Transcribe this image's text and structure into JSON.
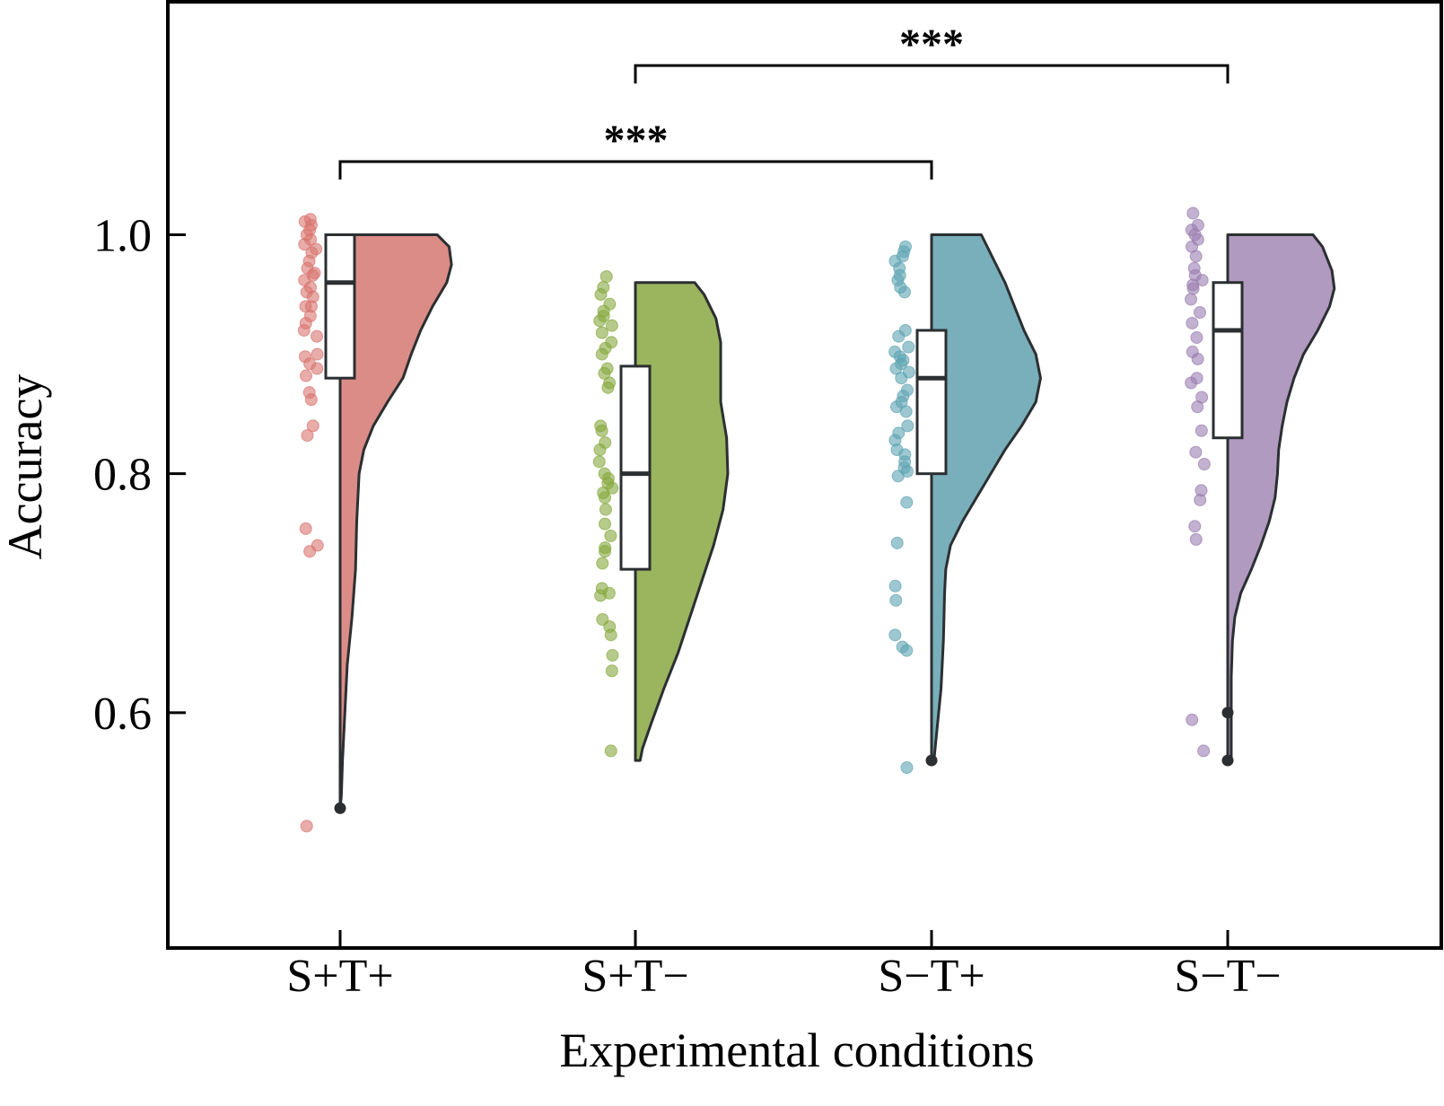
{
  "chart_data": {
    "type": "raincloud",
    "title": "",
    "xlabel": "Experimental conditions",
    "ylabel": "Accuracy",
    "ylim": [
      0.403,
      1.195
    ],
    "yticks": [
      0.6,
      0.8,
      1.0
    ],
    "ytick_labels": [
      "0.6",
      "0.8",
      "1.0"
    ],
    "grid": false,
    "legend": "none",
    "categories": [
      "S+T+",
      "S+T−",
      "S−T+",
      "S−T−"
    ],
    "series": [
      {
        "name": "S+T+",
        "color": "#dc8c87",
        "point_color": "#d9756f",
        "box": {
          "q1": 0.88,
          "median": 0.96,
          "q3": 1.0,
          "whisker_low": 0.52,
          "whisker_high": 1.0
        },
        "outliers": [
          0.52
        ],
        "violin": {
          "ymin": 0.52,
          "ymax": 1.0,
          "profile": [
            [
              1.0,
              0.82
            ],
            [
              0.99,
              0.92
            ],
            [
              0.975,
              0.94
            ],
            [
              0.96,
              0.9
            ],
            [
              0.94,
              0.78
            ],
            [
              0.92,
              0.68
            ],
            [
              0.9,
              0.6
            ],
            [
              0.88,
              0.53
            ],
            [
              0.86,
              0.4
            ],
            [
              0.84,
              0.28
            ],
            [
              0.82,
              0.2
            ],
            [
              0.8,
              0.16
            ],
            [
              0.78,
              0.15
            ],
            [
              0.76,
              0.14
            ],
            [
              0.72,
              0.13
            ],
            [
              0.68,
              0.1
            ],
            [
              0.64,
              0.06
            ],
            [
              0.6,
              0.04
            ],
            [
              0.56,
              0.02
            ],
            [
              0.53,
              0.01
            ],
            [
              0.52,
              0.0
            ]
          ]
        },
        "points": [
          1.013,
          1.008,
          1.011,
          1.0,
          1.004,
          0.996,
          0.992,
          0.988,
          0.985,
          0.978,
          0.972,
          0.968,
          0.966,
          0.962,
          0.956,
          0.952,
          0.948,
          0.94,
          0.94,
          0.932,
          0.926,
          0.92,
          0.915,
          0.9,
          0.898,
          0.892,
          0.888,
          0.882,
          0.868,
          0.862,
          0.84,
          0.832,
          0.754,
          0.74,
          0.735,
          0.505
        ]
      },
      {
        "name": "S+T−",
        "color": "#9ab55e",
        "point_color": "#86a83d",
        "box": {
          "q1": 0.72,
          "median": 0.8,
          "q3": 0.89,
          "whisker_low": 0.56,
          "whisker_high": 0.96
        },
        "outliers": [],
        "violin": {
          "ymin": 0.56,
          "ymax": 0.96,
          "profile": [
            [
              0.96,
              0.5
            ],
            [
              0.95,
              0.58
            ],
            [
              0.93,
              0.68
            ],
            [
              0.91,
              0.72
            ],
            [
              0.89,
              0.72
            ],
            [
              0.86,
              0.72
            ],
            [
              0.83,
              0.77
            ],
            [
              0.8,
              0.78
            ],
            [
              0.77,
              0.74
            ],
            [
              0.74,
              0.66
            ],
            [
              0.71,
              0.56
            ],
            [
              0.68,
              0.46
            ],
            [
              0.65,
              0.36
            ],
            [
              0.62,
              0.24
            ],
            [
              0.59,
              0.13
            ],
            [
              0.57,
              0.06
            ],
            [
              0.56,
              0.04
            ]
          ]
        },
        "points": [
          0.965,
          0.956,
          0.95,
          0.942,
          0.936,
          0.932,
          0.928,
          0.924,
          0.918,
          0.91,
          0.905,
          0.9,
          0.888,
          0.884,
          0.876,
          0.872,
          0.84,
          0.836,
          0.826,
          0.82,
          0.81,
          0.8,
          0.796,
          0.792,
          0.788,
          0.784,
          0.78,
          0.77,
          0.758,
          0.748,
          0.738,
          0.735,
          0.725,
          0.704,
          0.7,
          0.698,
          0.678,
          0.672,
          0.665,
          0.648,
          0.635,
          0.568
        ]
      },
      {
        "name": "S−T+",
        "color": "#78afbb",
        "point_color": "#5ea4b2",
        "box": {
          "q1": 0.8,
          "median": 0.88,
          "q3": 0.92,
          "whisker_low": 0.56,
          "whisker_high": 1.0
        },
        "outliers": [
          0.56
        ],
        "violin": {
          "ymin": 0.56,
          "ymax": 1.0,
          "profile": [
            [
              1.0,
              0.42
            ],
            [
              0.98,
              0.52
            ],
            [
              0.96,
              0.62
            ],
            [
              0.94,
              0.7
            ],
            [
              0.92,
              0.78
            ],
            [
              0.9,
              0.88
            ],
            [
              0.88,
              0.92
            ],
            [
              0.86,
              0.88
            ],
            [
              0.84,
              0.76
            ],
            [
              0.82,
              0.62
            ],
            [
              0.8,
              0.5
            ],
            [
              0.78,
              0.38
            ],
            [
              0.76,
              0.26
            ],
            [
              0.74,
              0.16
            ],
            [
              0.72,
              0.12
            ],
            [
              0.7,
              0.11
            ],
            [
              0.66,
              0.1
            ],
            [
              0.62,
              0.08
            ],
            [
              0.58,
              0.04
            ],
            [
              0.56,
              0.02
            ]
          ]
        },
        "points": [
          0.99,
          0.986,
          0.982,
          0.978,
          0.972,
          0.966,
          0.962,
          0.956,
          0.952,
          0.92,
          0.915,
          0.906,
          0.902,
          0.898,
          0.895,
          0.892,
          0.888,
          0.885,
          0.88,
          0.87,
          0.865,
          0.86,
          0.856,
          0.852,
          0.84,
          0.834,
          0.828,
          0.82,
          0.816,
          0.81,
          0.805,
          0.802,
          0.798,
          0.776,
          0.742,
          0.706,
          0.694,
          0.665,
          0.655,
          0.652,
          0.554
        ]
      },
      {
        "name": "S−T−",
        "color": "#b09ac0",
        "point_color": "#9a7db1",
        "box": {
          "q1": 0.83,
          "median": 0.92,
          "q3": 0.96,
          "whisker_low": 0.6,
          "whisker_high": 1.0
        },
        "outliers": [
          0.6,
          0.56
        ],
        "violin": {
          "ymin": 0.56,
          "ymax": 1.0,
          "profile": [
            [
              1.0,
              0.72
            ],
            [
              0.99,
              0.8
            ],
            [
              0.97,
              0.88
            ],
            [
              0.955,
              0.9
            ],
            [
              0.94,
              0.86
            ],
            [
              0.92,
              0.76
            ],
            [
              0.9,
              0.64
            ],
            [
              0.88,
              0.56
            ],
            [
              0.86,
              0.5
            ],
            [
              0.84,
              0.46
            ],
            [
              0.82,
              0.43
            ],
            [
              0.8,
              0.42
            ],
            [
              0.78,
              0.4
            ],
            [
              0.76,
              0.35
            ],
            [
              0.74,
              0.28
            ],
            [
              0.72,
              0.2
            ],
            [
              0.7,
              0.11
            ],
            [
              0.68,
              0.06
            ],
            [
              0.66,
              0.04
            ],
            [
              0.63,
              0.03
            ],
            [
              0.6,
              0.03
            ],
            [
              0.58,
              0.03
            ],
            [
              0.56,
              0.03
            ]
          ]
        },
        "points": [
          1.018,
          1.008,
          1.004,
          1.0,
          0.996,
          0.99,
          0.982,
          0.972,
          0.966,
          0.962,
          0.958,
          0.955,
          0.946,
          0.935,
          0.926,
          0.914,
          0.902,
          0.896,
          0.88,
          0.876,
          0.864,
          0.856,
          0.836,
          0.818,
          0.808,
          0.786,
          0.778,
          0.756,
          0.745,
          0.594,
          0.568
        ]
      }
    ],
    "significance": [
      {
        "from": "S+T+",
        "to": "S−T+",
        "label": "***",
        "level": 1
      },
      {
        "from": "S+T−",
        "to": "S−T−",
        "label": "***",
        "level": 2
      }
    ]
  }
}
